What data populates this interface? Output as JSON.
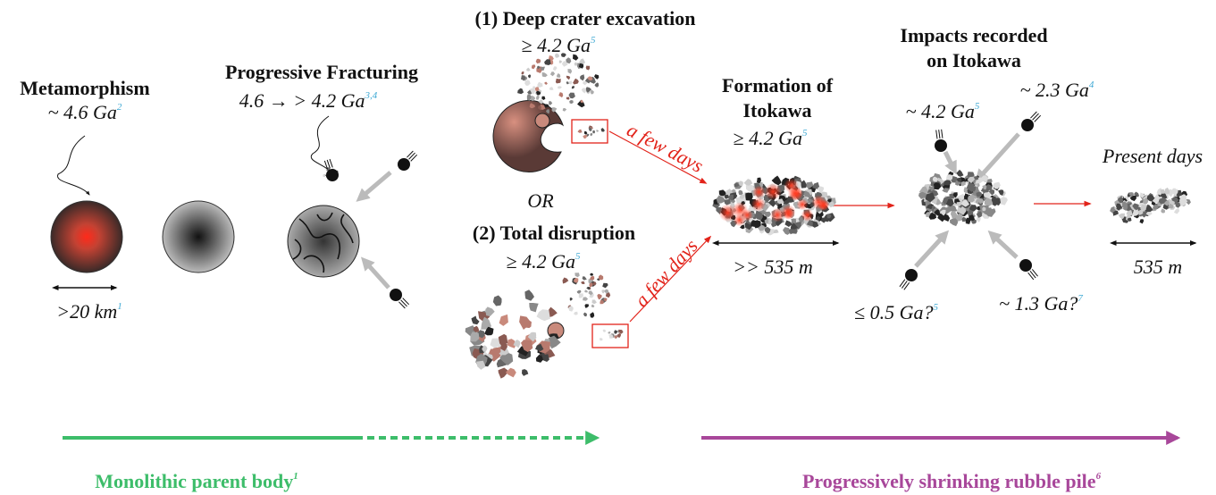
{
  "metamorphism": {
    "title": "Metamorphism",
    "age": "~ 4.6 Ga",
    "age_ref": "2",
    "size": ">20 km",
    "size_ref": "1"
  },
  "fracturing": {
    "title": "Progressive Fracturing",
    "age": "4.6 → > 4.2  Ga",
    "age_ref": "3,4"
  },
  "crater": {
    "title": "(1) Deep crater excavation",
    "age": "≥ 4.2 Ga",
    "age_ref": "5",
    "delay": "a few days"
  },
  "or": "OR",
  "disruption": {
    "title": "(2) Total disruption",
    "age": "≥ 4.2 Ga",
    "age_ref": "5",
    "delay": "a few days"
  },
  "formation": {
    "title_lines": [
      "Formation of",
      "Itokawa"
    ],
    "age": "≥ 4.2 Ga",
    "age_ref": "5",
    "size": ">> 535 m"
  },
  "impacts": {
    "title_lines": [
      "Impacts recorded",
      "on Itokawa"
    ],
    "events": [
      {
        "age": "~ 4.2 Ga",
        "ref": "5"
      },
      {
        "age": "~ 2.3 Ga",
        "ref": "4"
      },
      {
        "age": "≤ 0.5 Ga?",
        "ref": "5"
      },
      {
        "age": "~ 1.3 Ga?",
        "ref": "7"
      }
    ]
  },
  "present": {
    "title": "Present days",
    "size": "535 m"
  },
  "timeline": [
    {
      "label": "Monolithic parent body",
      "ref": "1"
    },
    {
      "label": "Progressively shrinking rubble pile",
      "ref": "6"
    }
  ]
}
